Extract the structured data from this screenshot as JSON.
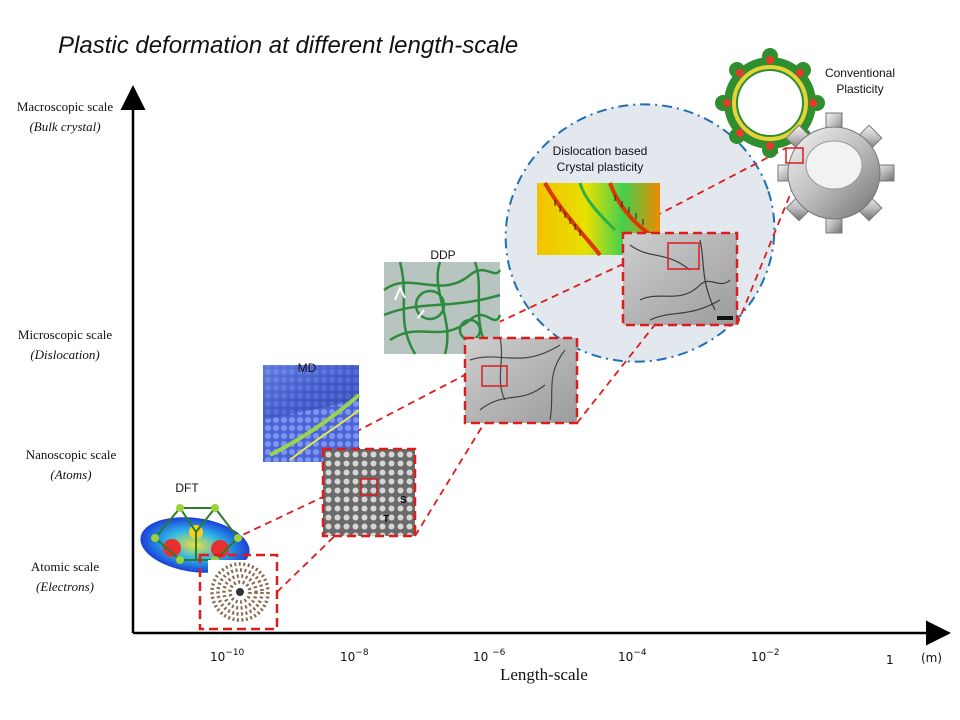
{
  "title": "Plastic deformation at different length-scale",
  "y_labels": [
    {
      "main": "Macroscopic scale",
      "sub": "(Bulk crystal)"
    },
    {
      "main": "Microscopic scale",
      "sub": "(Dislocation)"
    },
    {
      "main": "Nanoscopic scale",
      "sub": "(Atoms)"
    },
    {
      "main": "Atomic scale",
      "sub": "(Electrons)"
    }
  ],
  "method_labels": {
    "dft": "DFT",
    "md": "MD",
    "ddp": "DDP",
    "crystal_line1": "Dislocation based",
    "crystal_line2": "Crystal plasticity",
    "conventional_line1": "Conventional",
    "conventional_line2": "Plasticity"
  },
  "x_ticks": [
    {
      "base": "10",
      "exp": "−10"
    },
    {
      "base": "10",
      "exp": "−8"
    },
    {
      "base": "10 ",
      "exp": "−6"
    },
    {
      "base": "10",
      "exp": "−4"
    },
    {
      "base": "10",
      "exp": "−2"
    },
    {
      "base": "1",
      "exp": ""
    }
  ],
  "x_unit": "(m)",
  "x_label": "Length-scale",
  "colors": {
    "zoom_red": "#dd1c1c",
    "ellipse_blue": "#1f6fb5",
    "ellipse_fill": "#e3e7ee",
    "md_blue": "#3f58c9",
    "ddp_green": "#2e8a3c"
  }
}
